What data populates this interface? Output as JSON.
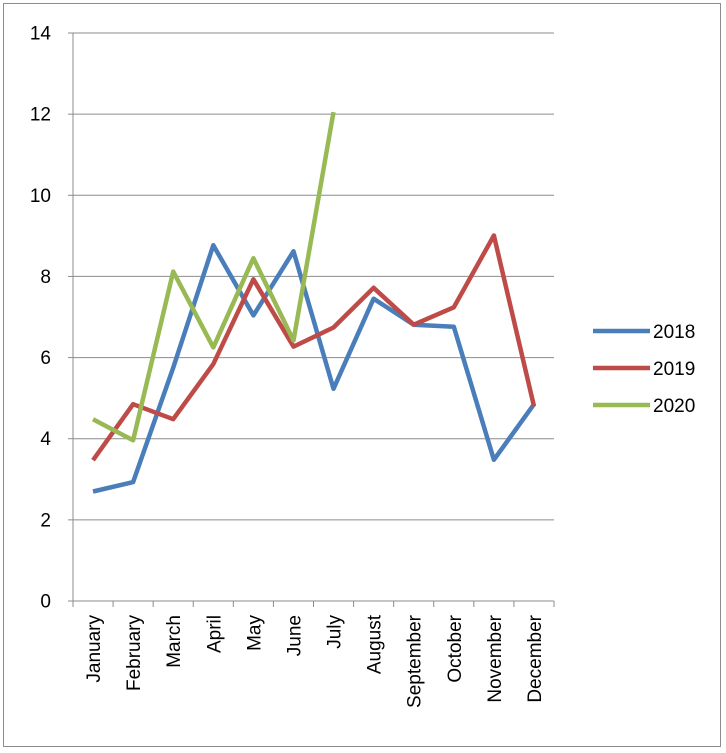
{
  "chart_data": {
    "type": "line",
    "title": "",
    "xlabel": "",
    "ylabel": "",
    "categories": [
      "January",
      "February",
      "March",
      "April",
      "May",
      "June",
      "July",
      "August",
      "September",
      "October",
      "November",
      "December"
    ],
    "y_ticks": [
      "0",
      "2",
      "4",
      "6",
      "8",
      "10",
      "12",
      "14"
    ],
    "ylim": [
      0,
      14
    ],
    "grid": "horizontal",
    "legend_position": "right",
    "series": [
      {
        "name": "2018",
        "color": "#4a7ebb",
        "values": [
          2.7,
          2.93,
          5.75,
          8.77,
          7.04,
          8.62,
          5.23,
          7.45,
          6.81,
          6.76,
          3.48,
          4.85
        ]
      },
      {
        "name": "2019",
        "color": "#be4b48",
        "values": [
          3.47,
          4.85,
          4.48,
          5.84,
          7.93,
          6.27,
          6.74,
          7.72,
          6.81,
          7.24,
          9.01,
          4.8
        ]
      },
      {
        "name": "2020",
        "color": "#98b954",
        "values": [
          4.48,
          3.96,
          8.12,
          6.25,
          8.45,
          6.42,
          12.05,
          null,
          null,
          null,
          null,
          null
        ]
      }
    ]
  }
}
